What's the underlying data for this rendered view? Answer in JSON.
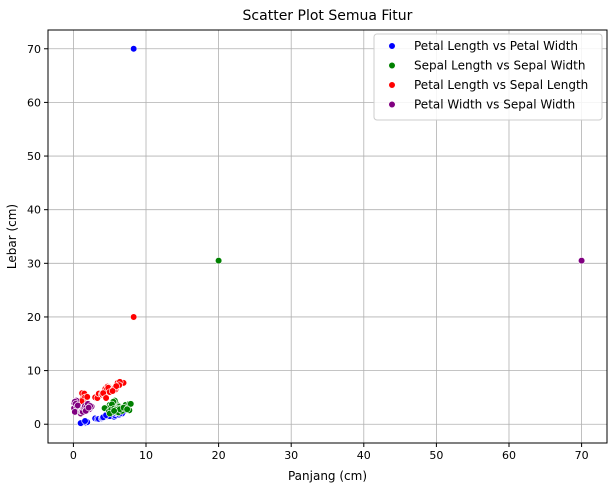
{
  "chart_data": {
    "type": "scatter",
    "title": "Scatter Plot Semua Fitur",
    "xlabel": "Panjang (cm)",
    "ylabel": "Lebar (cm)",
    "xlim": [
      -3.5,
      73.5
    ],
    "ylim": [
      -3.5,
      73.5
    ],
    "xticks": [
      0,
      10,
      20,
      30,
      40,
      50,
      60,
      70
    ],
    "yticks": [
      0,
      10,
      20,
      30,
      40,
      50,
      60,
      70
    ],
    "grid": true,
    "legend_position": "top-right",
    "series": [
      {
        "name": "Petal Length vs Petal Width",
        "color": "#0000ff",
        "points": [
          [
            1.4,
            0.2
          ],
          [
            1.3,
            0.2
          ],
          [
            1.5,
            0.2
          ],
          [
            1.7,
            0.4
          ],
          [
            1.6,
            0.2
          ],
          [
            1.1,
            0.1
          ],
          [
            1.2,
            0.2
          ],
          [
            1.9,
            0.4
          ],
          [
            1.4,
            0.3
          ],
          [
            1.5,
            0.4
          ],
          [
            1.0,
            0.2
          ],
          [
            1.6,
            0.6
          ],
          [
            3.0,
            1.1
          ],
          [
            3.3,
            1.0
          ],
          [
            3.5,
            1.0
          ],
          [
            3.9,
            1.1
          ],
          [
            4.0,
            1.2
          ],
          [
            4.2,
            1.3
          ],
          [
            4.5,
            1.5
          ],
          [
            4.4,
            1.4
          ],
          [
            4.7,
            1.4
          ],
          [
            4.9,
            1.5
          ],
          [
            4.6,
            1.5
          ],
          [
            5.0,
            1.7
          ],
          [
            4.1,
            1.3
          ],
          [
            4.8,
            1.8
          ],
          [
            5.1,
            1.6
          ],
          [
            5.6,
            1.4
          ],
          [
            5.0,
            1.5
          ],
          [
            5.5,
            1.8
          ],
          [
            5.8,
            1.6
          ],
          [
            6.0,
            2.5
          ],
          [
            6.1,
            1.9
          ],
          [
            5.6,
            2.4
          ],
          [
            6.6,
            2.1
          ],
          [
            6.9,
            2.3
          ],
          [
            5.1,
            2.3
          ],
          [
            5.7,
            2.1
          ],
          [
            6.7,
            2.0
          ],
          [
            6.3,
            1.8
          ],
          [
            5.9,
            2.3
          ],
          [
            6.4,
            2.0
          ],
          [
            4.5,
            1.7
          ],
          [
            8.3,
            70.0
          ]
        ]
      },
      {
        "name": "Sepal Length vs Sepal Width",
        "color": "#008000",
        "points": [
          [
            5.1,
            3.5
          ],
          [
            4.9,
            3.0
          ],
          [
            4.7,
            3.2
          ],
          [
            4.6,
            3.1
          ],
          [
            5.0,
            3.6
          ],
          [
            5.4,
            3.9
          ],
          [
            4.4,
            2.9
          ],
          [
            5.8,
            4.0
          ],
          [
            5.7,
            4.4
          ],
          [
            5.2,
            3.4
          ],
          [
            4.8,
            3.0
          ],
          [
            5.5,
            4.2
          ],
          [
            4.3,
            3.0
          ],
          [
            5.3,
            3.7
          ],
          [
            7.0,
            3.2
          ],
          [
            6.4,
            3.2
          ],
          [
            6.9,
            3.1
          ],
          [
            5.5,
            2.3
          ],
          [
            6.5,
            2.8
          ],
          [
            5.7,
            2.8
          ],
          [
            6.3,
            3.3
          ],
          [
            4.9,
            2.4
          ],
          [
            6.6,
            2.9
          ],
          [
            5.2,
            2.7
          ],
          [
            5.0,
            2.0
          ],
          [
            5.9,
            3.0
          ],
          [
            6.0,
            2.2
          ],
          [
            6.1,
            2.9
          ],
          [
            5.6,
            2.9
          ],
          [
            6.7,
            3.1
          ],
          [
            5.8,
            2.7
          ],
          [
            6.2,
            2.2
          ],
          [
            7.1,
            3.0
          ],
          [
            7.6,
            3.0
          ],
          [
            7.3,
            2.9
          ],
          [
            6.7,
            2.5
          ],
          [
            7.2,
            3.6
          ],
          [
            7.7,
            3.8
          ],
          [
            7.7,
            2.6
          ],
          [
            7.9,
            3.8
          ],
          [
            6.8,
            3.0
          ],
          [
            6.4,
            2.8
          ],
          [
            5.6,
            2.5
          ],
          [
            6.9,
            3.1
          ],
          [
            7.4,
            2.8
          ],
          [
            20.0,
            30.5
          ]
        ]
      },
      {
        "name": "Petal Length vs Sepal Length",
        "color": "#ff0000",
        "points": [
          [
            1.4,
            5.1
          ],
          [
            1.4,
            4.9
          ],
          [
            1.3,
            4.7
          ],
          [
            1.5,
            4.6
          ],
          [
            1.4,
            5.0
          ],
          [
            1.7,
            5.4
          ],
          [
            1.5,
            5.8
          ],
          [
            1.2,
            5.8
          ],
          [
            1.5,
            5.7
          ],
          [
            1.6,
            5.0
          ],
          [
            1.9,
            5.1
          ],
          [
            1.1,
            4.3
          ],
          [
            3.0,
            5.0
          ],
          [
            3.3,
            4.9
          ],
          [
            3.5,
            5.7
          ],
          [
            3.9,
            5.6
          ],
          [
            4.0,
            5.5
          ],
          [
            4.2,
            5.6
          ],
          [
            4.5,
            5.6
          ],
          [
            4.4,
            6.6
          ],
          [
            4.7,
            7.0
          ],
          [
            4.9,
            6.9
          ],
          [
            4.6,
            6.5
          ],
          [
            5.0,
            6.7
          ],
          [
            4.1,
            5.8
          ],
          [
            4.8,
            6.8
          ],
          [
            5.1,
            6.0
          ],
          [
            5.6,
            6.3
          ],
          [
            5.0,
            6.0
          ],
          [
            5.5,
            6.5
          ],
          [
            5.8,
            6.5
          ],
          [
            6.0,
            7.2
          ],
          [
            6.1,
            7.7
          ],
          [
            6.6,
            7.6
          ],
          [
            6.7,
            7.7
          ],
          [
            6.9,
            7.7
          ],
          [
            6.4,
            7.9
          ],
          [
            5.7,
            6.7
          ],
          [
            6.3,
            7.3
          ],
          [
            5.9,
            7.1
          ],
          [
            5.4,
            6.2
          ],
          [
            4.5,
            4.9
          ],
          [
            8.3,
            20.0
          ]
        ]
      },
      {
        "name": "Petal Width vs Sepal Width",
        "color": "#800080",
        "points": [
          [
            0.2,
            3.5
          ],
          [
            0.2,
            3.0
          ],
          [
            0.2,
            3.2
          ],
          [
            0.2,
            3.1
          ],
          [
            0.2,
            3.6
          ],
          [
            0.4,
            3.9
          ],
          [
            0.3,
            3.4
          ],
          [
            0.2,
            2.9
          ],
          [
            0.1,
            3.1
          ],
          [
            0.2,
            3.7
          ],
          [
            0.1,
            3.0
          ],
          [
            0.1,
            4.0
          ],
          [
            0.4,
            4.4
          ],
          [
            0.2,
            4.2
          ],
          [
            0.3,
            3.8
          ],
          [
            0.5,
            3.3
          ],
          [
            0.6,
            3.5
          ],
          [
            0.2,
            2.3
          ],
          [
            1.0,
            2.0
          ],
          [
            1.0,
            2.4
          ],
          [
            1.1,
            2.5
          ],
          [
            1.2,
            2.6
          ],
          [
            1.3,
            2.8
          ],
          [
            1.4,
            3.0
          ],
          [
            1.5,
            2.9
          ],
          [
            1.3,
            2.3
          ],
          [
            1.4,
            3.1
          ],
          [
            1.5,
            3.2
          ],
          [
            1.6,
            3.4
          ],
          [
            1.8,
            3.2
          ],
          [
            1.9,
            2.7
          ],
          [
            2.0,
            2.8
          ],
          [
            2.1,
            3.0
          ],
          [
            2.2,
            2.8
          ],
          [
            2.3,
            3.2
          ],
          [
            2.4,
            3.1
          ],
          [
            2.5,
            3.3
          ],
          [
            1.8,
            2.5
          ],
          [
            2.0,
            3.8
          ],
          [
            2.3,
            3.4
          ],
          [
            1.7,
            2.5
          ],
          [
            2.1,
            3.1
          ],
          [
            70.0,
            30.5
          ]
        ]
      }
    ]
  }
}
